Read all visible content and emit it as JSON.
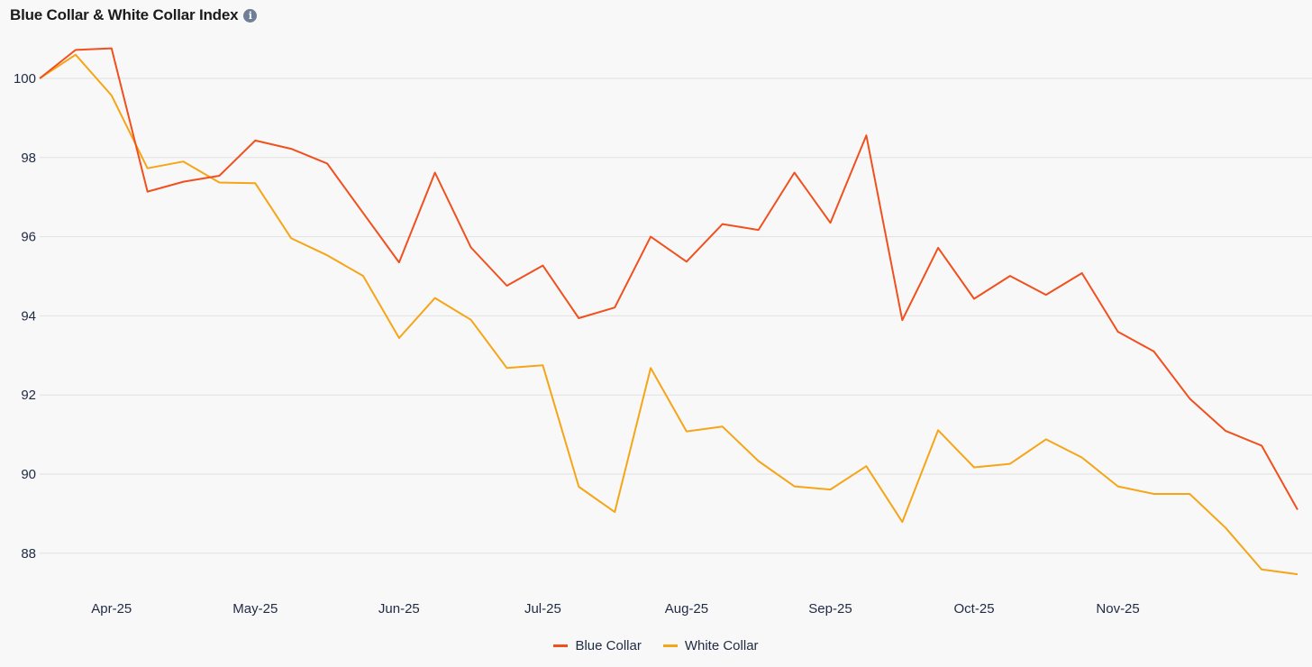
{
  "header": {
    "title": "Blue Collar & White Collar Index",
    "info_icon": "info-icon"
  },
  "chart_data": {
    "type": "line",
    "title": "Blue Collar & White Collar Index",
    "xlabel": "",
    "ylabel": "",
    "ylim": [
      87.5,
      101
    ],
    "y_ticks": [
      88,
      90,
      92,
      94,
      96,
      98,
      100
    ],
    "x_tick_labels": [
      "Apr-25",
      "May-25",
      "Jun-25",
      "Jul-25",
      "Aug-25",
      "Sep-25",
      "Oct-25",
      "Nov-25"
    ],
    "x_tick_index": [
      2,
      6,
      10,
      14,
      18,
      22,
      26,
      30
    ],
    "grid": true,
    "legend_position": "bottom-center",
    "series": [
      {
        "name": "Blue Collar",
        "color": "#f0501e",
        "values": [
          100,
          100.72,
          100.76,
          97.14,
          97.39,
          97.54,
          98.43,
          98.22,
          97.85,
          96.6,
          95.35,
          97.62,
          95.73,
          94.76,
          95.27,
          93.94,
          94.21,
          96.0,
          95.37,
          96.32,
          96.17,
          97.62,
          96.35,
          98.56,
          93.89,
          95.72,
          94.43,
          95.01,
          94.53,
          95.08,
          93.6,
          93.1,
          91.91,
          91.09,
          90.72,
          89.1
        ]
      },
      {
        "name": "White Collar",
        "color": "#f5a516",
        "values": [
          100,
          100.6,
          99.57,
          97.73,
          97.9,
          97.37,
          97.35,
          95.96,
          95.53,
          95.01,
          93.44,
          94.45,
          93.9,
          92.68,
          92.75,
          89.68,
          89.04,
          92.68,
          91.08,
          91.2,
          90.33,
          89.69,
          89.61,
          90.2,
          88.79,
          91.11,
          90.17,
          90.26,
          90.88,
          90.42,
          89.69,
          89.5,
          89.5,
          88.64,
          87.59,
          87.47
        ]
      }
    ]
  }
}
